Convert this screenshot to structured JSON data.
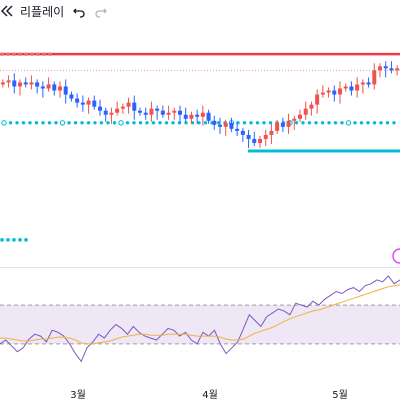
{
  "toolbar": {
    "replay_label": "리플레이",
    "replay_icon": "rewind-icon",
    "undo_icon": "undo-icon",
    "redo_icon": "redo-icon"
  },
  "colors": {
    "up": "#ef5350",
    "down": "#2962ff",
    "resistance": "#f23645",
    "support": "#00bcd4",
    "rsi_line": "#7e57c2",
    "rsi_ma": "#f5b041",
    "rsi_band": "#ede7f6",
    "chevron": "#e040fb"
  },
  "x_axis": {
    "labels": [
      "3월",
      "4월",
      "5월"
    ]
  },
  "chart_data": [
    {
      "type": "candlestick",
      "title": "",
      "x_ticks": [
        "3월",
        "4월",
        "5월"
      ],
      "levels": {
        "resistance_top": 100,
        "resistance_dotted": 92,
        "support_dotted": 66,
        "support_solid": 52,
        "lower_dotted": 8
      },
      "ohlc_close_trend": [
        86,
        87,
        84,
        86,
        85,
        86,
        84,
        83,
        85,
        82,
        84,
        80,
        78,
        76,
        75,
        77,
        74,
        72,
        70,
        71,
        73,
        74,
        76,
        72,
        71,
        70,
        73,
        72,
        70,
        71,
        72,
        70,
        68,
        70,
        69,
        71,
        67,
        65,
        64,
        66,
        63,
        62,
        60,
        58,
        56,
        58,
        60,
        62,
        66,
        64,
        67,
        68,
        70,
        73,
        75,
        80,
        81,
        82,
        80,
        83,
        84,
        82,
        85,
        86,
        85,
        92,
        94,
        93,
        92,
        93
      ]
    },
    {
      "type": "line",
      "title": "",
      "series": [
        {
          "name": "",
          "values": [
            30,
            34,
            28,
            22,
            26,
            35,
            40,
            38,
            32,
            44,
            42,
            38,
            30,
            20,
            12,
            26,
            32,
            40,
            36,
            44,
            50,
            46,
            40,
            48,
            42,
            38,
            36,
            34,
            40,
            46,
            44,
            38,
            42,
            34,
            30,
            42,
            38,
            44,
            30,
            20,
            26,
            32,
            46,
            60,
            54,
            48,
            58,
            62,
            66,
            64,
            60,
            72,
            70,
            68,
            74,
            70,
            76,
            80,
            84,
            82,
            86,
            88,
            84,
            90,
            92,
            96,
            94,
            100,
            92,
            96
          ]
        },
        {
          "name": "",
          "values": [
            36,
            36,
            35,
            34,
            33,
            33,
            34,
            35,
            35,
            36,
            37,
            37,
            36,
            34,
            31,
            30,
            30,
            31,
            32,
            33,
            35,
            37,
            38,
            39,
            40,
            40,
            39,
            39,
            39,
            40,
            40,
            40,
            40,
            39,
            38,
            38,
            38,
            38,
            37,
            35,
            34,
            34,
            35,
            38,
            41,
            43,
            45,
            47,
            50,
            53,
            56,
            58,
            60,
            62,
            64,
            65,
            67,
            69,
            71,
            73,
            75,
            77,
            79,
            81,
            83,
            85,
            87,
            89,
            90,
            91
          ]
        }
      ],
      "bands": [
        70,
        30
      ],
      "ylim": [
        0,
        100
      ]
    }
  ]
}
